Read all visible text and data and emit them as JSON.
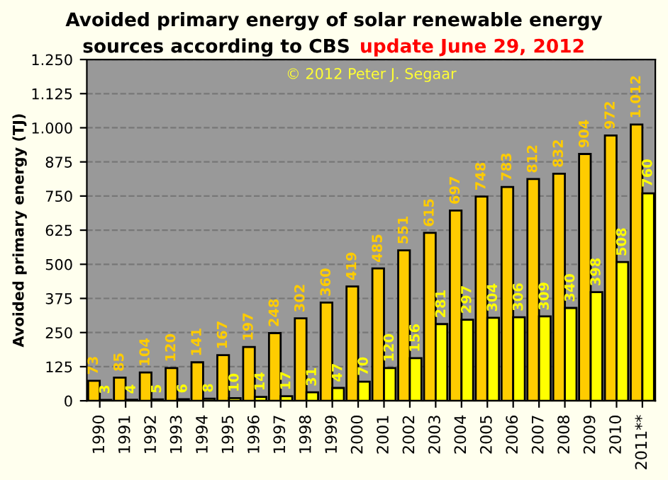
{
  "chart_data": {
    "type": "bar",
    "title": "Avoided primary energy of solar renewable energy\nsources according to CBS",
    "subtitle": "update June 29, 2012",
    "ylabel": "Avoided primary energy (TJ)",
    "annotations": [
      "© 2012 Peter J. Segaar"
    ],
    "categories": [
      "1990",
      "1991",
      "1992",
      "1993",
      "1994",
      "1995",
      "1996",
      "1997",
      "1998",
      "1999",
      "2000",
      "2001",
      "2002",
      "2003",
      "2004",
      "2005",
      "2006",
      "2007",
      "2008",
      "2009",
      "2010",
      "2011**"
    ],
    "series": [
      {
        "color": "#ffcc00",
        "values": [
          73,
          85,
          104,
          120,
          141,
          167,
          197,
          248,
          302,
          360,
          419,
          485,
          551,
          615,
          697,
          748,
          783,
          812,
          832,
          904,
          972,
          1012
        ],
        "value_labels": [
          "73",
          "85",
          "104",
          "120",
          "141",
          "167",
          "197",
          "248",
          "302",
          "360",
          "419",
          "485",
          "551",
          "615",
          "697",
          "748",
          "783",
          "812",
          "832",
          "904",
          "972",
          "1.012"
        ]
      },
      {
        "color": "#ffff00",
        "values": [
          3,
          4,
          5,
          6,
          8,
          10,
          14,
          17,
          31,
          47,
          70,
          120,
          156,
          281,
          297,
          304,
          306,
          309,
          340,
          398,
          508,
          760
        ],
        "value_labels": [
          "3",
          "4",
          "5",
          "6",
          "8",
          "10",
          "14",
          "17",
          "31",
          "47",
          "70",
          "120",
          "156",
          "281",
          "297",
          "304",
          "306",
          "309",
          "340",
          "398",
          "508",
          "760"
        ]
      }
    ],
    "ylim": [
      0,
      1250
    ],
    "yticks": [
      0,
      125,
      250,
      375,
      500,
      625,
      750,
      875,
      {
        "value": 1000,
        "label": "1.000"
      },
      {
        "value": 1125,
        "label": "1.125"
      },
      {
        "value": 1250,
        "label": "1.250"
      }
    ],
    "grid": "y",
    "legend": false
  }
}
